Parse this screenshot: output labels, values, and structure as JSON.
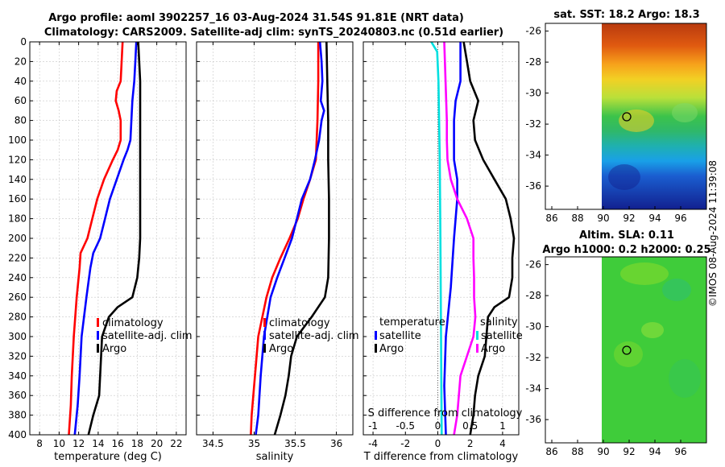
{
  "header": {
    "title_line1": "Argo profile: aoml 3902257_16 03-Aug-2024 31.54S 91.81E (NRT data)",
    "title_line2": "Climatology: CARS2009. Satellite-adj clim: synTS_20240803.nc (0.51d earlier)",
    "sst_title": "sat. SST: 18.2 Argo: 18.3",
    "sla_title_line1": "Altim. SLA: 0.11",
    "sla_title_line2": "Argo h1000: 0.2 h2000: 0.25",
    "credit": "©IMOS 08-Aug-2024 11:39:08"
  },
  "chart_data": [
    {
      "id": "temperature",
      "type": "line",
      "xlabel": "temperature (deg C)",
      "ylabel": "",
      "xlim": [
        7,
        23
      ],
      "ylim": [
        400,
        0
      ],
      "xticks": [
        8,
        10,
        12,
        14,
        16,
        18,
        20,
        22
      ],
      "yticks": [
        0,
        20,
        40,
        60,
        80,
        100,
        120,
        140,
        160,
        180,
        200,
        220,
        240,
        260,
        280,
        300,
        320,
        340,
        360,
        380,
        400
      ],
      "grid": true,
      "legend": [
        "climatology",
        "satellite-adj. clim",
        "Argo"
      ],
      "series": [
        {
          "name": "climatology",
          "color": "#ff0000",
          "depth": [
            0,
            20,
            40,
            50,
            60,
            70,
            80,
            100,
            110,
            120,
            140,
            160,
            180,
            200,
            215,
            230,
            260,
            300,
            340,
            370,
            400
          ],
          "values": [
            16.5,
            16.4,
            16.3,
            15.9,
            15.8,
            16.1,
            16.3,
            16.3,
            16.0,
            15.5,
            14.6,
            13.9,
            13.4,
            12.9,
            12.2,
            12.1,
            11.8,
            11.5,
            11.3,
            11.2,
            11.0
          ]
        },
        {
          "name": "satellite-adj. clim",
          "color": "#0000ff",
          "depth": [
            0,
            20,
            40,
            60,
            80,
            100,
            110,
            120,
            140,
            160,
            180,
            200,
            215,
            230,
            260,
            300,
            340,
            370,
            400
          ],
          "values": [
            17.9,
            17.8,
            17.7,
            17.5,
            17.4,
            17.3,
            17.0,
            16.6,
            15.9,
            15.2,
            14.7,
            14.2,
            13.5,
            13.2,
            12.8,
            12.3,
            12.1,
            11.9,
            11.6
          ]
        },
        {
          "name": "Argo",
          "color": "#000000",
          "depth": [
            0,
            20,
            40,
            60,
            80,
            100,
            120,
            140,
            160,
            180,
            200,
            220,
            240,
            260,
            270,
            280,
            300,
            320,
            340,
            360,
            380,
            400
          ],
          "values": [
            18.1,
            18.2,
            18.3,
            18.3,
            18.3,
            18.3,
            18.3,
            18.3,
            18.3,
            18.3,
            18.3,
            18.2,
            18.0,
            17.5,
            16.0,
            15.1,
            14.4,
            14.3,
            14.2,
            14.1,
            13.5,
            13.0
          ]
        }
      ]
    },
    {
      "id": "salinity",
      "type": "line",
      "xlabel": "salinity",
      "ylabel": "",
      "xlim": [
        34.3,
        36.2
      ],
      "ylim": [
        400,
        0
      ],
      "xticks": [
        34.5,
        35,
        35.5,
        36
      ],
      "grid": true,
      "legend": [
        "climatology",
        "satellite-adj. clim",
        "Argo"
      ],
      "series": [
        {
          "name": "climatology",
          "color": "#ff0000",
          "depth": [
            0,
            40,
            80,
            100,
            120,
            140,
            160,
            180,
            200,
            220,
            240,
            260,
            300,
            340,
            380,
            400
          ],
          "values": [
            35.78,
            35.78,
            35.77,
            35.76,
            35.75,
            35.68,
            35.6,
            35.53,
            35.43,
            35.32,
            35.22,
            35.15,
            35.05,
            35.01,
            34.97,
            34.96
          ]
        },
        {
          "name": "satellite-adj. clim",
          "color": "#0000ff",
          "depth": [
            0,
            20,
            40,
            60,
            70,
            80,
            100,
            120,
            140,
            160,
            180,
            200,
            220,
            240,
            260,
            300,
            340,
            380,
            400
          ],
          "values": [
            35.8,
            35.82,
            35.83,
            35.81,
            35.85,
            35.82,
            35.79,
            35.74,
            35.68,
            35.58,
            35.52,
            35.46,
            35.37,
            35.28,
            35.2,
            35.12,
            35.08,
            35.05,
            35.02
          ]
        },
        {
          "name": "Argo",
          "color": "#000000",
          "depth": [
            0,
            40,
            80,
            120,
            160,
            200,
            240,
            260,
            280,
            300,
            320,
            340,
            360,
            380,
            400
          ],
          "values": [
            35.88,
            35.89,
            35.9,
            35.9,
            35.91,
            35.91,
            35.9,
            35.86,
            35.7,
            35.52,
            35.45,
            35.42,
            35.38,
            35.32,
            35.25
          ]
        }
      ]
    },
    {
      "id": "difference",
      "type": "line",
      "xlabel": "T difference from climatology",
      "xlabel_top": "S difference from climatology",
      "ylabel": "",
      "xlim": [
        -4.6,
        5
      ],
      "xticks": [
        -4,
        -2,
        0,
        2,
        4
      ],
      "xlim_top": [
        -1.15,
        1.25
      ],
      "xticks_top": [
        -1,
        -0.5,
        0,
        0.5,
        1
      ],
      "ylim": [
        400,
        0
      ],
      "grid": true,
      "legend_left_heading": "temperature",
      "legend_left": [
        "satellite",
        "Argo"
      ],
      "legend_right_heading": "salinity",
      "legend_right": [
        "satellite",
        "Argo"
      ],
      "series": [
        {
          "name": "temperature satellite",
          "color": "#0000ff",
          "depth": [
            0,
            20,
            40,
            60,
            80,
            100,
            120,
            140,
            160,
            200,
            250,
            300,
            350,
            400
          ],
          "values": [
            1.4,
            1.4,
            1.4,
            1.1,
            1.0,
            1.0,
            1.0,
            1.2,
            1.2,
            1.0,
            0.8,
            0.5,
            0.4,
            0.5
          ]
        },
        {
          "name": "temperature Argo",
          "color": "#000000",
          "depth": [
            0,
            20,
            40,
            60,
            80,
            100,
            120,
            140,
            160,
            180,
            200,
            220,
            240,
            260,
            270,
            280,
            300,
            320,
            340,
            360,
            380,
            400
          ],
          "values": [
            1.6,
            1.8,
            2.0,
            2.5,
            2.2,
            2.3,
            2.8,
            3.5,
            4.2,
            4.5,
            4.7,
            4.6,
            4.6,
            4.4,
            3.5,
            3.1,
            3.0,
            2.9,
            2.5,
            2.3,
            2.2,
            2.0
          ]
        },
        {
          "name": "salinity satellite",
          "color": "#00e0e0",
          "depth": [
            0,
            10,
            40,
            80,
            120,
            200,
            300,
            400
          ],
          "values": [
            -0.1,
            -0.01,
            0.01,
            0.02,
            0.03,
            0.04,
            0.05,
            0.06
          ]
        },
        {
          "name": "salinity Argo",
          "color": "#ff00ff",
          "depth": [
            0,
            20,
            40,
            60,
            80,
            100,
            120,
            140,
            160,
            180,
            200,
            220,
            240,
            260,
            280,
            300,
            340,
            380,
            400
          ],
          "values": [
            0.1,
            0.11,
            0.12,
            0.13,
            0.14,
            0.14,
            0.15,
            0.2,
            0.3,
            0.45,
            0.55,
            0.55,
            0.56,
            0.56,
            0.58,
            0.55,
            0.35,
            0.3,
            0.25
          ]
        }
      ]
    },
    {
      "id": "sst_map",
      "type": "heatmap",
      "title": "sat. SST: 18.2 Argo: 18.3",
      "xlim": [
        85.5,
        98
      ],
      "ylim": [
        -37.5,
        -25.5
      ],
      "xticks": [
        86,
        88,
        90,
        92,
        94,
        96
      ],
      "yticks": [
        -26,
        -28,
        -30,
        -32,
        -34,
        -36
      ],
      "argo_position": [
        91.81,
        -31.54
      ],
      "data_extent_lon": [
        90,
        98
      ]
    },
    {
      "id": "sla_map",
      "type": "heatmap",
      "title": "Altim. SLA: 0.11",
      "xlim": [
        85.5,
        98
      ],
      "ylim": [
        -37.5,
        -25.5
      ],
      "xticks": [
        86,
        88,
        90,
        92,
        94,
        96
      ],
      "yticks": [
        -26,
        -28,
        -30,
        -32,
        -34,
        -36
      ],
      "argo_position": [
        91.81,
        -31.54
      ],
      "data_extent_lon": [
        90,
        98
      ]
    }
  ]
}
